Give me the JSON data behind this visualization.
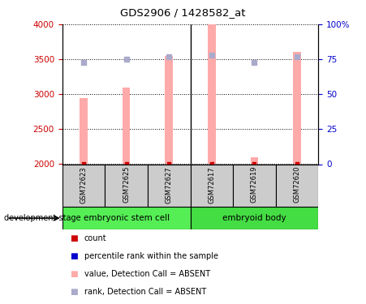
{
  "title": "GDS2906 / 1428582_at",
  "samples": [
    "GSM72623",
    "GSM72625",
    "GSM72627",
    "GSM72617",
    "GSM72619",
    "GSM72620"
  ],
  "group_labels": [
    "embryonic stem cell",
    "embryoid body"
  ],
  "group_split": 3,
  "bar_values": [
    2950,
    3100,
    3550,
    4000,
    2100,
    3600
  ],
  "bar_color": "#ffaaaa",
  "bar_bottom": 2000,
  "bar_width": 0.18,
  "rank_values": [
    73,
    75,
    77,
    78,
    73,
    77
  ],
  "rank_color": "#aaaacc",
  "count_color": "#cc0000",
  "ylim_left": [
    2000,
    4000
  ],
  "ylim_right": [
    0,
    100
  ],
  "yticks_left": [
    2000,
    2500,
    3000,
    3500,
    4000
  ],
  "yticks_right": [
    0,
    25,
    50,
    75,
    100
  ],
  "yticklabels_right": [
    "0",
    "25",
    "50",
    "75",
    "100%"
  ],
  "left_tick_color": "#cc0000",
  "right_tick_color": "#0000cc",
  "group_color_1": "#55ee55",
  "group_color_2": "#44dd44",
  "sample_box_color": "#cccccc",
  "legend_items": [
    {
      "label": "count",
      "color": "#cc0000"
    },
    {
      "label": "percentile rank within the sample",
      "color": "#0000cc"
    },
    {
      "label": "value, Detection Call = ABSENT",
      "color": "#ffaaaa"
    },
    {
      "label": "rank, Detection Call = ABSENT",
      "color": "#aaaacc"
    }
  ],
  "dev_stage_label": "development stage",
  "figsize": [
    4.51,
    3.75
  ],
  "dpi": 100
}
